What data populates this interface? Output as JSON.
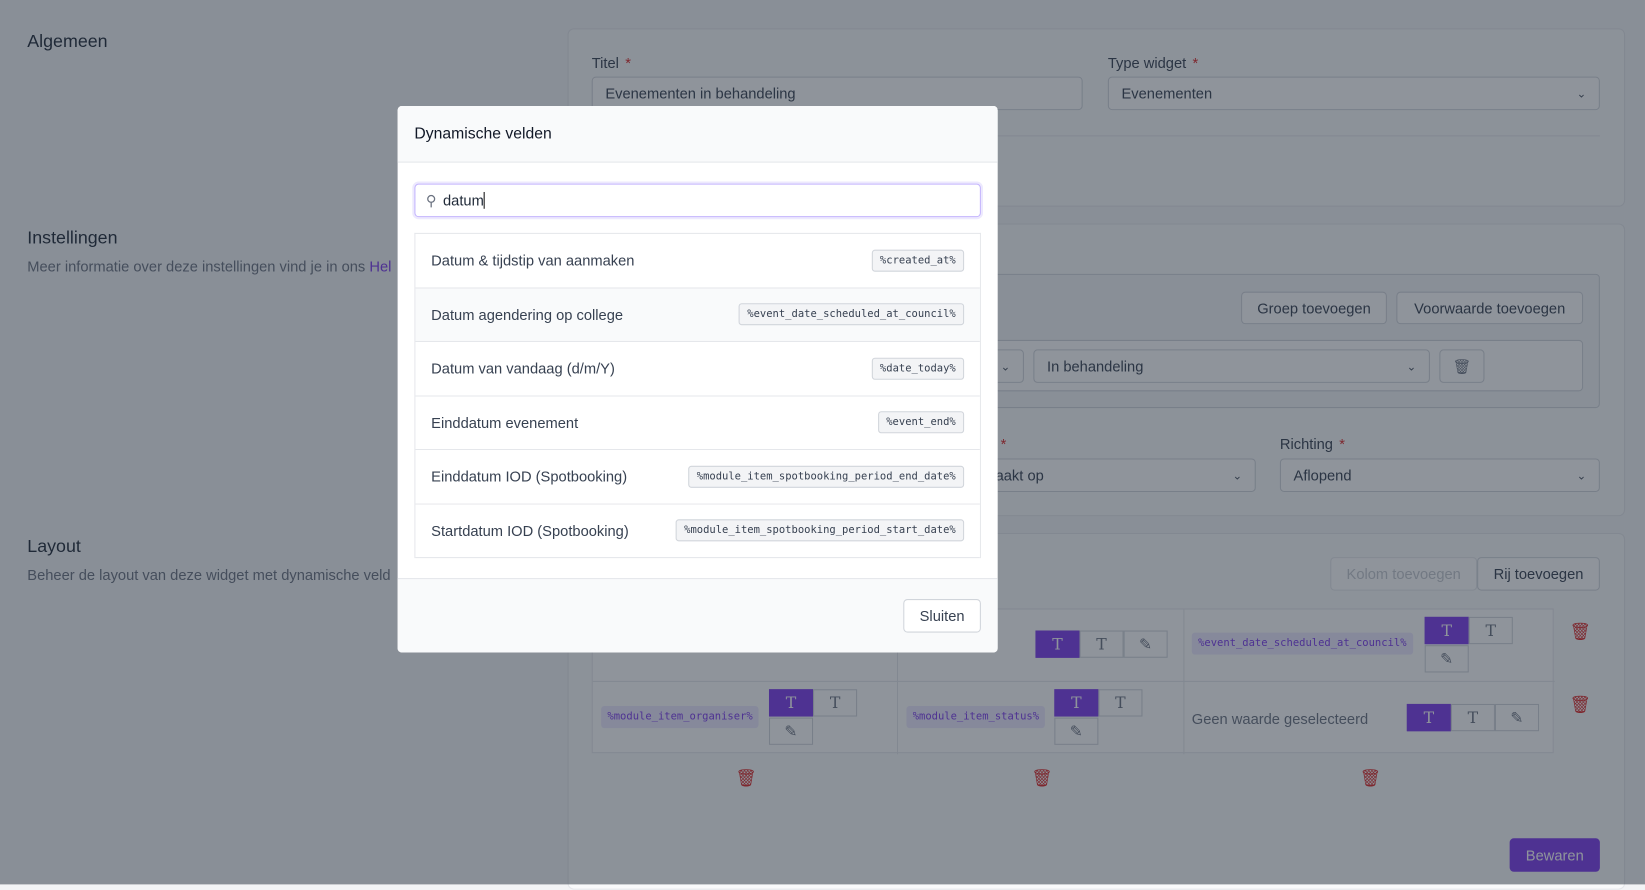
{
  "sections": {
    "general": {
      "title": "Algemeen",
      "title_label": "Titel",
      "title_value": "Evenementen in behandeling",
      "type_label": "Type widget",
      "type_value": "Evenementen"
    },
    "settings": {
      "title": "Instellingen",
      "subtitle": "Meer informatie over deze instellingen vind je in ons ",
      "link": "Hel",
      "add_group": "Groep toevoegen",
      "add_condition": "Voorwaarde toevoegen",
      "condition_value": "In behandeling",
      "sort_label_fragment": "p",
      "sort_value_fragment": "aakt op",
      "direction_label": "Richting",
      "direction_value": "Aflopend"
    },
    "layout": {
      "title": "Layout",
      "subtitle": "Beheer de layout van deze widget met dynamische veld",
      "add_column": "Kolom toevoegen",
      "add_row": "Rij toevoegen",
      "cells": {
        "r1c3": "%event_date_scheduled_at_council%",
        "r2c1": "%module_item_organiser%",
        "r2c2": "%module_item_status%",
        "r2c3": "Geen waarde geselecteerd"
      },
      "save": "Bewaren"
    }
  },
  "required_mark": "*",
  "modal": {
    "title": "Dynamische velden",
    "search_value": "datum",
    "items": [
      {
        "label": "Datum & tijdstip van aanmaken",
        "code": "%created_at%"
      },
      {
        "label": "Datum agendering op college",
        "code": "%event_date_scheduled_at_council%"
      },
      {
        "label": "Datum van vandaag (d/m/Y)",
        "code": "%date_today%"
      },
      {
        "label": "Einddatum evenement",
        "code": "%event_end%"
      },
      {
        "label": "Einddatum IOD (Spotbooking)",
        "code": "%module_item_spotbooking_period_end_date%"
      },
      {
        "label": "Startdatum IOD (Spotbooking)",
        "code": "%module_item_spotbooking_period_start_date%"
      }
    ],
    "close": "Sluiten"
  },
  "colors": {
    "accent": "#7c3aed",
    "danger": "#dc2626"
  }
}
